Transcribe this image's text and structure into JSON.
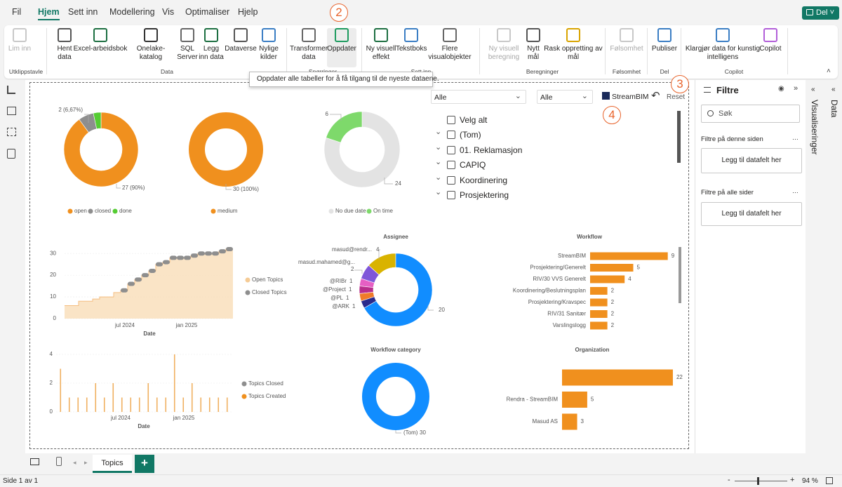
{
  "menu": {
    "file": "Fil",
    "tabs": [
      "Hjem",
      "Sett inn",
      "Modellering",
      "Vis",
      "Optimaliser",
      "Hjelp"
    ],
    "share": "Del"
  },
  "ribbon": {
    "buttons": [
      {
        "label": "Lim inn",
        "disabled": true
      },
      {
        "label": "Hent data",
        "disabled": false
      },
      {
        "label": "Excel-arbeidsbok",
        "disabled": false
      },
      {
        "label": "Onelake-katalog",
        "disabled": false
      },
      {
        "label": "SQL Server",
        "disabled": false
      },
      {
        "label": "Legg inn data",
        "disabled": false
      },
      {
        "label": "Dataverse",
        "disabled": false
      },
      {
        "label": "Nylige kilder",
        "disabled": false
      },
      {
        "label": "Transformer data",
        "disabled": false
      },
      {
        "label": "Oppdater",
        "disabled": false
      },
      {
        "label": "Ny visuell effekt",
        "disabled": false
      },
      {
        "label": "Tekstboks",
        "disabled": false
      },
      {
        "label": "Flere visualobjekter",
        "disabled": false
      },
      {
        "label": "Ny visuell beregning",
        "disabled": true
      },
      {
        "label": "Nytt mål",
        "disabled": false
      },
      {
        "label": "Rask oppretting av mål",
        "disabled": false
      },
      {
        "label": "Følsomhet",
        "disabled": true
      },
      {
        "label": "Publiser",
        "disabled": false
      },
      {
        "label": "Klargjør data for kunstig intelligens",
        "disabled": false
      },
      {
        "label": "Copilot",
        "disabled": false
      }
    ],
    "groups": [
      "Utklippstavle",
      "Data",
      "Spørringer",
      "Sett inn",
      "Beregninger",
      "Følsomhet",
      "Del",
      "Copilot"
    ]
  },
  "tooltip": "Oppdater alle tabeller for å få tilgang til de nyeste dataene.",
  "callouts": [
    "2",
    "3",
    "4"
  ],
  "visuals": {
    "status": {
      "type": "pie",
      "categories": [
        "open",
        "closed",
        "done"
      ],
      "values": [
        27,
        2,
        1
      ],
      "colors": [
        "#F0901E",
        "#8E8E8E",
        "#55CC33"
      ],
      "value_labels": [
        "27 (90%)",
        "2 (6,67%)",
        null
      ]
    },
    "priority": {
      "type": "pie",
      "categories": [
        "medium"
      ],
      "values": [
        30
      ],
      "colors": [
        "#F0901E"
      ],
      "value_labels": [
        "30 (100%)"
      ]
    },
    "due": {
      "type": "pie",
      "categories": [
        "No due date",
        "On time"
      ],
      "values": [
        24,
        6
      ],
      "colors": [
        "#E3E3E3",
        "#7ED96B"
      ]
    },
    "timeline": {
      "type": "line",
      "xlabel": "Date",
      "xticks": [
        "jul 2024",
        "jan 2025"
      ],
      "ylim": [
        0,
        32
      ],
      "yticks": [
        0,
        10,
        20,
        30
      ],
      "series": [
        {
          "name": "Open Topics",
          "color": "#F9DDB8",
          "values": [
            6,
            6,
            8,
            8,
            9,
            10,
            10,
            12,
            13,
            16,
            18,
            20,
            22,
            25,
            26,
            28,
            28,
            28,
            29,
            30,
            30,
            30,
            31,
            32
          ]
        },
        {
          "name": "Closed Topics",
          "color": "#8E8E8E",
          "values": [
            null,
            null,
            null,
            null,
            null,
            null,
            null,
            null,
            13,
            16,
            18,
            20,
            22,
            25,
            26,
            28,
            28,
            28,
            29,
            30,
            30,
            30,
            31,
            32
          ]
        }
      ]
    },
    "daily": {
      "type": "bar",
      "xlabel": "Date",
      "xticks": [
        "jul 2024",
        "jan 2025"
      ],
      "ylim": [
        0,
        4
      ],
      "yticks": [
        0,
        2,
        4
      ],
      "series": [
        {
          "name": "Topics Closed",
          "color": "#8E8E8E",
          "values": [
            0,
            0,
            0,
            0,
            0,
            0,
            0,
            0,
            0,
            0,
            0,
            0,
            0,
            0,
            0,
            0,
            0,
            0,
            0,
            0
          ]
        },
        {
          "name": "Topics Created",
          "color": "#F0B060",
          "values": [
            3,
            1,
            1,
            1,
            2,
            1,
            2,
            1,
            1,
            1,
            2,
            1,
            1,
            4,
            1,
            2,
            1,
            1,
            1,
            1
          ]
        }
      ]
    },
    "assignee": {
      "type": "pie",
      "title": "Assignee",
      "categories": [
        "masud@rendr...",
        "masud.mahamed@g...",
        "@RIBr",
        "@Project",
        "@PL",
        "@ARK",
        null
      ],
      "values": [
        4,
        2,
        1,
        1,
        1,
        1,
        20
      ],
      "colors": [
        "#D9B300",
        "#7F56D9",
        "#E65FC4",
        "#B82D8C",
        "#F07B2A",
        "#2A2A8C",
        "#118DFF"
      ]
    },
    "workflow": {
      "type": "bar",
      "title": "Workflow",
      "categories": [
        "StreamBIM",
        "Prosjektering/Generelt",
        "RIV/30 VVS Generelt",
        "Koordinering/Beslutningsplan",
        "Prosjektering/Kravspec",
        "RIV/31 Sanitær",
        "Varslingslogg"
      ],
      "values": [
        9,
        5,
        4,
        2,
        2,
        2,
        2
      ],
      "color": "#F0901E"
    },
    "workflow_category": {
      "type": "pie",
      "title": "Workflow category",
      "categories": [
        "(Tom)"
      ],
      "values": [
        30
      ],
      "colors": [
        "#118DFF"
      ]
    },
    "organization": {
      "type": "bar",
      "title": "Organization",
      "categories": [
        null,
        "Rendra - StreamBIM",
        "Masud AS"
      ],
      "values": [
        22,
        5,
        3
      ],
      "color": "#F0901E"
    }
  },
  "slicer": {
    "dropdowns": [
      "Alle",
      "Alle"
    ],
    "items": [
      "Velg alt",
      "(Tom)",
      "01. Reklamasjon",
      "CAPIQ",
      "Koordinering",
      "Prosjektering"
    ],
    "streambim": "StreamBIM",
    "reset": "Reset"
  },
  "filters": {
    "title": "Filtre",
    "search": "Søk",
    "sections": [
      {
        "title": "Filtre på denne siden",
        "drop": "Legg til datafelt her"
      },
      {
        "title": "Filtre på alle sider",
        "drop": "Legg til datafelt her"
      }
    ]
  },
  "panes": [
    "Visualiseringer",
    "Data"
  ],
  "page_tab": "Topics",
  "status": "Side 1 av 1",
  "zoom": "94 %"
}
